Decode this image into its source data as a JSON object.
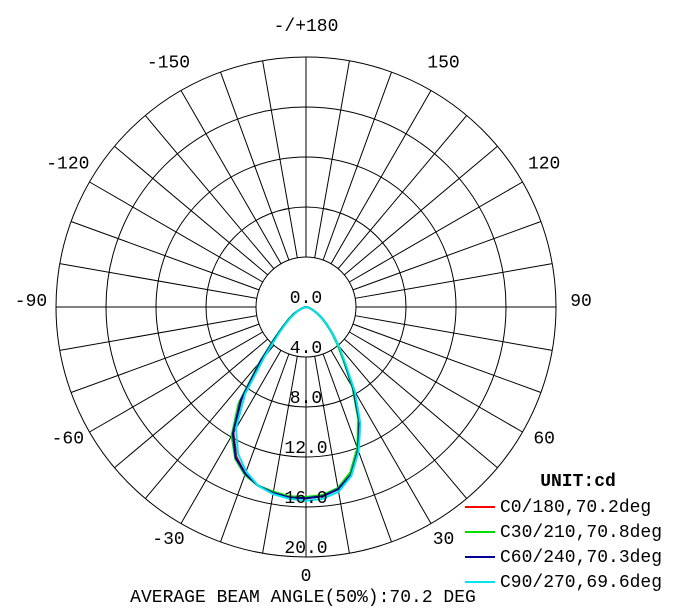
{
  "chart_data": {
    "type": "polar",
    "unit_label": "UNIT:cd",
    "footer": "AVERAGE BEAM ANGLE(50%):70.2 DEG",
    "theta": [
      -90,
      -85,
      -80,
      -75,
      -70,
      -65,
      -60,
      -55,
      -50,
      -45,
      -40,
      -35,
      -30,
      -25,
      -20,
      -15,
      -10,
      -5,
      0,
      5,
      10,
      15,
      20,
      25,
      30,
      35,
      40,
      45,
      50,
      55,
      60,
      65,
      70,
      75,
      80,
      85,
      90
    ],
    "rlim": [
      0,
      20
    ],
    "rticks": [
      {
        "value": 0,
        "label": "0.0"
      },
      {
        "value": 4,
        "label": "4.0"
      },
      {
        "value": 8,
        "label": "8.0"
      },
      {
        "value": 12,
        "label": "12.0"
      },
      {
        "value": 16,
        "label": "16.0"
      },
      {
        "value": 20,
        "label": "20.0"
      }
    ],
    "thetaticks": [
      {
        "value": 180,
        "label": "-/+180"
      },
      150,
      120,
      90,
      60,
      30,
      0,
      -30,
      -60,
      -90,
      -120,
      -150
    ],
    "series": [
      {
        "name": "C0/180,70.2deg",
        "color": "#ff0000",
        "values": [
          0,
          0,
          0.1,
          0.2,
          0.4,
          0.7,
          1.1,
          1.6,
          2.3,
          3.4,
          5.5,
          9.0,
          11.6,
          13.2,
          14.2,
          14.8,
          15.1,
          15.3,
          15.3,
          15.2,
          14.8,
          13.8,
          12.1,
          10.0,
          7.5,
          5.3,
          4.0,
          3.0,
          2.2,
          1.6,
          1.1,
          0.7,
          0.4,
          0.2,
          0.1,
          0,
          0
        ]
      },
      {
        "name": "C30/210,70.8deg",
        "color": "#00dd00",
        "values": [
          0,
          0,
          0.1,
          0.2,
          0.4,
          0.7,
          1.2,
          1.7,
          2.4,
          3.6,
          5.8,
          9.4,
          11.9,
          13.4,
          14.3,
          14.8,
          15.0,
          15.2,
          15.2,
          15.1,
          14.7,
          13.7,
          12.0,
          9.9,
          7.4,
          5.2,
          3.9,
          2.9,
          2.1,
          1.5,
          1.0,
          0.7,
          0.4,
          0.2,
          0.1,
          0,
          0
        ]
      },
      {
        "name": "C60/240,70.3deg",
        "color": "#000099",
        "values": [
          0,
          0,
          0.1,
          0.2,
          0.4,
          0.7,
          1.1,
          1.6,
          2.3,
          3.4,
          5.6,
          9.1,
          11.7,
          13.3,
          14.2,
          14.8,
          15.1,
          15.3,
          15.3,
          15.2,
          14.8,
          13.9,
          12.2,
          10.1,
          7.6,
          5.4,
          4.1,
          3.0,
          2.2,
          1.6,
          1.1,
          0.7,
          0.4,
          0.2,
          0.1,
          0,
          0
        ]
      },
      {
        "name": "C90/270,69.6deg",
        "color": "#00e5ee",
        "values": [
          0,
          0,
          0.1,
          0.2,
          0.4,
          0.7,
          1.0,
          1.5,
          2.2,
          3.2,
          5.1,
          8.5,
          11.2,
          12.9,
          14.0,
          14.8,
          15.2,
          15.4,
          15.5,
          15.4,
          15.0,
          14.0,
          12.3,
          10.3,
          7.8,
          5.5,
          4.1,
          3.0,
          2.2,
          1.6,
          1.1,
          0.7,
          0.4,
          0.2,
          0.1,
          0,
          0
        ]
      }
    ]
  }
}
